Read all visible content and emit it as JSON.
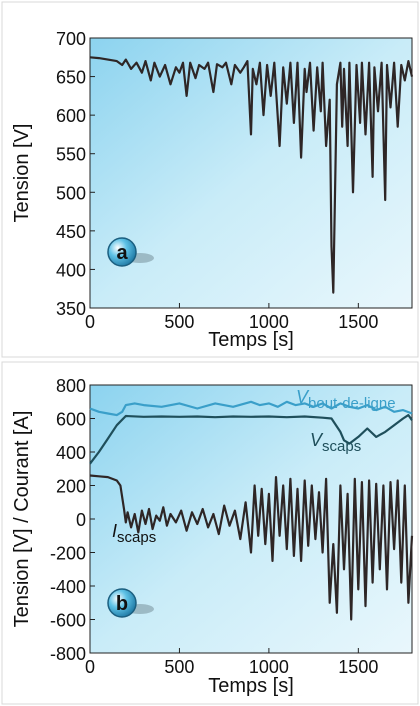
{
  "chart_data": [
    {
      "type": "line",
      "panel_label": "a",
      "xlabel": "Temps [s]",
      "ylabel": "Tension [V]",
      "xlim": [
        0,
        1800
      ],
      "ylim": [
        350,
        700
      ],
      "x_ticks": [
        0,
        500,
        1000,
        1500
      ],
      "y_ticks": [
        350,
        400,
        450,
        500,
        550,
        600,
        650,
        700
      ],
      "grid": false,
      "series": [
        {
          "name": "",
          "color": "#2e2626",
          "x": [
            0,
            50,
            100,
            150,
            180,
            200,
            230,
            260,
            290,
            310,
            340,
            360,
            390,
            420,
            450,
            480,
            500,
            520,
            540,
            560,
            590,
            610,
            640,
            660,
            690,
            710,
            740,
            760,
            790,
            810,
            840,
            860,
            880,
            900,
            910,
            930,
            950,
            970,
            990,
            1010,
            1030,
            1060,
            1080,
            1100,
            1120,
            1140,
            1160,
            1180,
            1200,
            1210,
            1230,
            1250,
            1270,
            1290,
            1300,
            1320,
            1340,
            1350,
            1360,
            1380,
            1400,
            1410,
            1420,
            1440,
            1450,
            1470,
            1490,
            1510,
            1520,
            1540,
            1560,
            1580,
            1590,
            1610,
            1630,
            1650,
            1660,
            1680,
            1700,
            1720,
            1740,
            1760,
            1780,
            1800
          ],
          "y": [
            675,
            674,
            672,
            670,
            665,
            672,
            660,
            668,
            655,
            670,
            645,
            668,
            650,
            665,
            640,
            662,
            655,
            668,
            625,
            668,
            648,
            665,
            660,
            668,
            630,
            666,
            662,
            668,
            640,
            665,
            655,
            662,
            670,
            575,
            660,
            640,
            668,
            600,
            665,
            625,
            668,
            560,
            662,
            615,
            668,
            590,
            668,
            545,
            660,
            630,
            668,
            580,
            662,
            605,
            668,
            560,
            620,
            430,
            370,
            640,
            668,
            585,
            660,
            560,
            668,
            500,
            665,
            590,
            668,
            575,
            668,
            520,
            662,
            605,
            668,
            490,
            665,
            610,
            668,
            585,
            665,
            645,
            670,
            650
          ]
        }
      ]
    },
    {
      "type": "line",
      "panel_label": "b",
      "xlabel": "Temps [s]",
      "ylabel": "Tension [V] / Courant [A]",
      "xlim": [
        0,
        1800
      ],
      "ylim": [
        -800,
        800
      ],
      "x_ticks": [
        0,
        500,
        1000,
        1500
      ],
      "y_ticks": [
        -800,
        -600,
        -400,
        -200,
        0,
        200,
        400,
        600,
        800
      ],
      "grid": false,
      "series": [
        {
          "name": "V",
          "name_sub": "bout-de-ligne",
          "color": "#3a9fc9",
          "x": [
            0,
            50,
            100,
            150,
            180,
            200,
            250,
            300,
            400,
            500,
            600,
            700,
            800,
            900,
            950,
            1000,
            1050,
            1100,
            1150,
            1200,
            1250,
            1300,
            1350,
            1400,
            1450,
            1500,
            1550,
            1600,
            1650,
            1700,
            1750,
            1800
          ],
          "y": [
            660,
            640,
            630,
            620,
            640,
            680,
            690,
            680,
            670,
            690,
            660,
            690,
            670,
            700,
            680,
            690,
            670,
            700,
            680,
            690,
            670,
            690,
            660,
            690,
            670,
            660,
            680,
            650,
            670,
            640,
            650,
            630
          ]
        },
        {
          "name": "V",
          "name_sub": "scaps",
          "color": "#1f4f5b",
          "x": [
            0,
            50,
            100,
            150,
            200,
            300,
            400,
            500,
            600,
            700,
            800,
            900,
            1000,
            1100,
            1200,
            1300,
            1350,
            1400,
            1420,
            1450,
            1500,
            1550,
            1600,
            1650,
            1700,
            1750,
            1780,
            1800
          ],
          "y": [
            330,
            400,
            480,
            560,
            615,
            610,
            612,
            610,
            612,
            608,
            612,
            610,
            612,
            608,
            612,
            605,
            600,
            520,
            470,
            450,
            490,
            540,
            490,
            520,
            560,
            600,
            620,
            590
          ]
        },
        {
          "name": "I",
          "name_sub": "scaps",
          "color": "#2e2626",
          "x": [
            0,
            50,
            100,
            150,
            170,
            190,
            200,
            210,
            230,
            250,
            270,
            290,
            310,
            330,
            350,
            370,
            390,
            410,
            430,
            450,
            480,
            510,
            540,
            570,
            600,
            630,
            660,
            690,
            720,
            750,
            780,
            810,
            840,
            870,
            900,
            920,
            940,
            960,
            980,
            1000,
            1020,
            1040,
            1060,
            1080,
            1100,
            1120,
            1140,
            1160,
            1180,
            1200,
            1220,
            1240,
            1260,
            1280,
            1300,
            1320,
            1340,
            1360,
            1380,
            1400,
            1420,
            1440,
            1460,
            1480,
            1500,
            1520,
            1540,
            1560,
            1580,
            1600,
            1620,
            1640,
            1660,
            1680,
            1700,
            1720,
            1740,
            1760,
            1780,
            1800
          ],
          "y": [
            260,
            255,
            250,
            230,
            200,
            60,
            -20,
            40,
            -50,
            30,
            -80,
            50,
            -30,
            60,
            -60,
            20,
            -10,
            70,
            -40,
            30,
            -20,
            50,
            -70,
            40,
            -30,
            60,
            -50,
            30,
            -90,
            80,
            -40,
            50,
            -120,
            100,
            -200,
            200,
            -100,
            180,
            -150,
            150,
            -250,
            250,
            -100,
            200,
            -180,
            240,
            -220,
            180,
            -250,
            230,
            -160,
            200,
            -120,
            160,
            -200,
            240,
            -500,
            -150,
            -560,
            200,
            -300,
            150,
            -600,
            240,
            -420,
            220,
            -520,
            230,
            -380,
            210,
            -300,
            200,
            -420,
            220,
            -180,
            230,
            -380,
            200,
            -500,
            -100
          ]
        }
      ]
    }
  ]
}
